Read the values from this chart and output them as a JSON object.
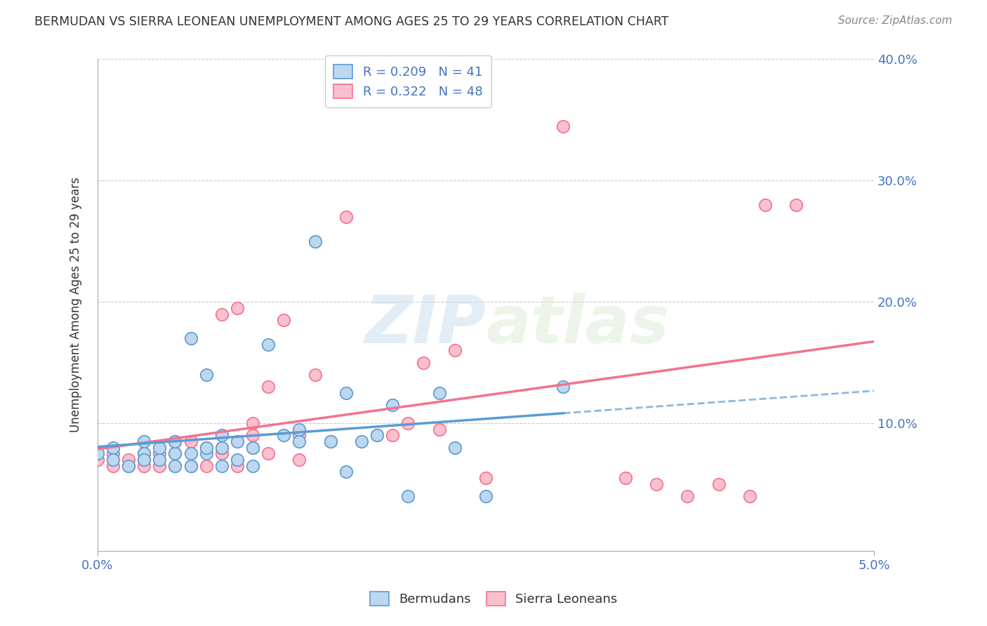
{
  "title": "BERMUDAN VS SIERRA LEONEAN UNEMPLOYMENT AMONG AGES 25 TO 29 YEARS CORRELATION CHART",
  "source": "Source: ZipAtlas.com",
  "ylabel": "Unemployment Among Ages 25 to 29 years",
  "xlim": [
    0.0,
    0.05
  ],
  "ylim": [
    -0.005,
    0.4
  ],
  "x_ticks": [
    0.0,
    0.05
  ],
  "x_tick_labels": [
    "0.0%",
    "5.0%"
  ],
  "y_ticks": [
    0.1,
    0.2,
    0.3,
    0.4
  ],
  "y_tick_labels": [
    "10.0%",
    "20.0%",
    "30.0%",
    "40.0%"
  ],
  "bermuda_color": "#5b9bd5",
  "bermuda_color_fill": "#bdd7ee",
  "sierra_color": "#f4728f",
  "sierra_color_fill": "#f9c0ce",
  "bermuda_R": 0.209,
  "bermuda_N": 41,
  "sierra_R": 0.322,
  "sierra_N": 48,
  "bermuda_scatter_x": [
    0.0,
    0.001,
    0.001,
    0.002,
    0.003,
    0.003,
    0.003,
    0.004,
    0.004,
    0.005,
    0.005,
    0.005,
    0.006,
    0.006,
    0.006,
    0.007,
    0.007,
    0.007,
    0.008,
    0.008,
    0.008,
    0.009,
    0.009,
    0.01,
    0.01,
    0.011,
    0.012,
    0.013,
    0.013,
    0.014,
    0.015,
    0.016,
    0.016,
    0.017,
    0.018,
    0.019,
    0.02,
    0.022,
    0.023,
    0.025,
    0.03
  ],
  "bermuda_scatter_y": [
    0.075,
    0.08,
    0.07,
    0.065,
    0.085,
    0.075,
    0.07,
    0.07,
    0.08,
    0.065,
    0.075,
    0.085,
    0.065,
    0.075,
    0.17,
    0.075,
    0.08,
    0.14,
    0.08,
    0.09,
    0.065,
    0.07,
    0.085,
    0.065,
    0.08,
    0.165,
    0.09,
    0.085,
    0.095,
    0.25,
    0.085,
    0.125,
    0.06,
    0.085,
    0.09,
    0.115,
    0.04,
    0.125,
    0.08,
    0.04,
    0.13
  ],
  "sierra_scatter_x": [
    0.0,
    0.001,
    0.001,
    0.002,
    0.002,
    0.003,
    0.003,
    0.003,
    0.004,
    0.004,
    0.005,
    0.005,
    0.005,
    0.006,
    0.006,
    0.007,
    0.007,
    0.008,
    0.008,
    0.008,
    0.009,
    0.009,
    0.01,
    0.01,
    0.01,
    0.011,
    0.011,
    0.012,
    0.013,
    0.013,
    0.014,
    0.015,
    0.016,
    0.018,
    0.019,
    0.02,
    0.021,
    0.022,
    0.023,
    0.025,
    0.03,
    0.034,
    0.036,
    0.038,
    0.04,
    0.042,
    0.043,
    0.045
  ],
  "sierra_scatter_y": [
    0.07,
    0.065,
    0.075,
    0.065,
    0.07,
    0.07,
    0.075,
    0.065,
    0.075,
    0.065,
    0.065,
    0.075,
    0.085,
    0.065,
    0.085,
    0.065,
    0.08,
    0.075,
    0.19,
    0.08,
    0.065,
    0.195,
    0.09,
    0.08,
    0.1,
    0.075,
    0.13,
    0.185,
    0.07,
    0.09,
    0.14,
    0.085,
    0.27,
    0.09,
    0.09,
    0.1,
    0.15,
    0.095,
    0.16,
    0.055,
    0.345,
    0.055,
    0.05,
    0.04,
    0.05,
    0.04,
    0.28,
    0.28
  ],
  "watermark_zip": "ZIP",
  "watermark_atlas": "atlas",
  "grid_color": "#cccccc",
  "bg_color": "#ffffff",
  "tick_color": "#4472c4",
  "axis_color": "#aaaaaa",
  "title_color": "#333333",
  "legend_box_color_bermuda": "#bdd7ee",
  "legend_box_edge_bermuda": "#5b9bd5",
  "legend_box_color_sierra": "#f9c0ce",
  "legend_box_edge_sierra": "#f4728f",
  "legend_text_color": "#333333",
  "legend_value_color": "#4472c4",
  "bermuda_line_intercept": 0.072,
  "bermuda_line_slope": 2.56,
  "sierra_line_intercept": 0.058,
  "sierra_line_slope": 2.4
}
